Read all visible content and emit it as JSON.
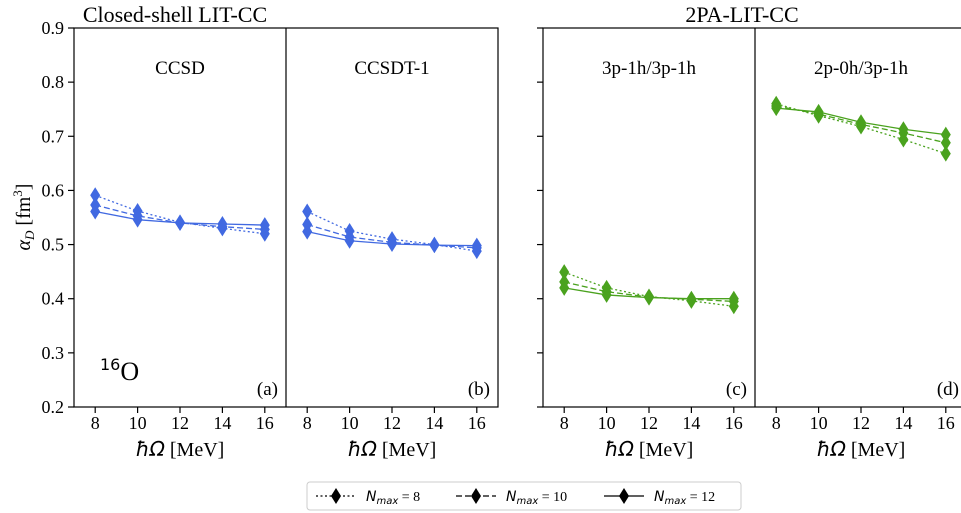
{
  "group_titles": [
    "Closed-shell LIT-CC",
    "2PA-LIT-CC"
  ],
  "y_axis": {
    "label_main": "α",
    "label_sub": "D",
    "label_unit_open": " [fm",
    "label_unit_sup": "3",
    "label_unit_close": "]",
    "tick_labels": [
      "0.2",
      "0.3",
      "0.4",
      "0.5",
      "0.6",
      "0.7",
      "0.8",
      "0.9"
    ]
  },
  "x_axis": {
    "label_symbol": "ħΩ",
    "label_unit": " [MeV]",
    "tick_labels": [
      "8",
      "10",
      "12",
      "14",
      "16"
    ]
  },
  "nucleus": {
    "mass": "16",
    "element": "O"
  },
  "legend": [
    {
      "name": "N",
      "sub": "max",
      "eq": " = 8",
      "style": "dotted"
    },
    {
      "name": "N",
      "sub": "max",
      "eq": " = 10",
      "style": "dashed"
    },
    {
      "name": "N",
      "sub": "max",
      "eq": " = 12",
      "style": "solid"
    }
  ],
  "colors": {
    "blue": "#4169e1",
    "green": "#4aa21e",
    "axis": "#000000"
  },
  "chart_data": [
    {
      "type": "line",
      "panel_title": "CCSD",
      "panel_label": "(a)",
      "color": "#4169e1",
      "x": [
        8,
        10,
        12,
        14,
        16
      ],
      "xlim": [
        7,
        17
      ],
      "ylim": [
        0.2,
        0.9
      ],
      "series": [
        {
          "name": "Nmax = 8",
          "style": "dotted",
          "values": [
            0.591,
            0.562,
            0.541,
            0.53,
            0.52
          ]
        },
        {
          "name": "Nmax = 10",
          "style": "dashed",
          "values": [
            0.573,
            0.553,
            0.54,
            0.533,
            0.528
          ]
        },
        {
          "name": "Nmax = 12",
          "style": "solid",
          "values": [
            0.561,
            0.546,
            0.54,
            0.538,
            0.536
          ]
        }
      ]
    },
    {
      "type": "line",
      "panel_title": "CCSDT-1",
      "panel_label": "(b)",
      "color": "#4169e1",
      "x": [
        8,
        10,
        12,
        14,
        16
      ],
      "xlim": [
        7,
        17
      ],
      "ylim": [
        0.2,
        0.9
      ],
      "series": [
        {
          "name": "Nmax = 8",
          "style": "dotted",
          "values": [
            0.561,
            0.525,
            0.51,
            0.5,
            0.488
          ]
        },
        {
          "name": "Nmax = 10",
          "style": "dashed",
          "values": [
            0.537,
            0.514,
            0.504,
            0.499,
            0.494
          ]
        },
        {
          "name": "Nmax = 12",
          "style": "solid",
          "values": [
            0.524,
            0.507,
            0.501,
            0.499,
            0.498
          ]
        }
      ]
    },
    {
      "type": "line",
      "panel_title": "3p-1h/3p-1h",
      "panel_label": "(c)",
      "color": "#4aa21e",
      "x": [
        8,
        10,
        12,
        14,
        16
      ],
      "xlim": [
        7,
        17
      ],
      "ylim": [
        0.2,
        0.9
      ],
      "series": [
        {
          "name": "Nmax = 8",
          "style": "dotted",
          "values": [
            0.449,
            0.42,
            0.404,
            0.396,
            0.386
          ]
        },
        {
          "name": "Nmax = 10",
          "style": "dashed",
          "values": [
            0.431,
            0.413,
            0.403,
            0.399,
            0.395
          ]
        },
        {
          "name": "Nmax = 12",
          "style": "solid",
          "values": [
            0.42,
            0.407,
            0.402,
            0.4,
            0.4
          ]
        }
      ]
    },
    {
      "type": "line",
      "panel_title": "2p-0h/3p-1h",
      "panel_label": "(d)",
      "color": "#4aa21e",
      "x": [
        8,
        10,
        12,
        14,
        16
      ],
      "xlim": [
        7,
        17
      ],
      "ylim": [
        0.2,
        0.9
      ],
      "series": [
        {
          "name": "Nmax = 8",
          "style": "dotted",
          "values": [
            0.76,
            0.738,
            0.718,
            0.694,
            0.668
          ]
        },
        {
          "name": "Nmax = 10",
          "style": "dashed",
          "values": [
            0.756,
            0.741,
            0.722,
            0.706,
            0.688
          ]
        },
        {
          "name": "Nmax = 12",
          "style": "solid",
          "values": [
            0.752,
            0.745,
            0.726,
            0.713,
            0.703
          ]
        }
      ]
    }
  ]
}
